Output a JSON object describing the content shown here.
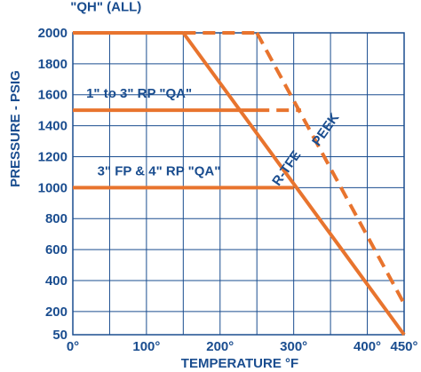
{
  "chart_data": {
    "type": "line",
    "xlabel": "TEMPERATURE °F",
    "ylabel": "PRESSURE - PSIG",
    "xlim": [
      0,
      450
    ],
    "ylim": [
      50,
      2000
    ],
    "grid": true,
    "x_ticks": [
      {
        "value": 0,
        "label": "0°"
      },
      {
        "value": 100,
        "label": "100°"
      },
      {
        "value": 200,
        "label": "200°"
      },
      {
        "value": 300,
        "label": "300°"
      },
      {
        "value": 400,
        "label": "400°"
      },
      {
        "value": 450,
        "label": "450°"
      }
    ],
    "y_ticks": [
      {
        "value": 50,
        "label": "50"
      },
      {
        "value": 200,
        "label": "200"
      },
      {
        "value": 400,
        "label": "400"
      },
      {
        "value": 600,
        "label": "600"
      },
      {
        "value": 800,
        "label": "800"
      },
      {
        "value": 1000,
        "label": "1000"
      },
      {
        "value": 1200,
        "label": "1200"
      },
      {
        "value": 1400,
        "label": "1400"
      },
      {
        "value": 1600,
        "label": "1600"
      },
      {
        "value": 1800,
        "label": "1800"
      },
      {
        "value": 2000,
        "label": "2000"
      }
    ],
    "series": [
      {
        "name": "R-TFE",
        "style": "solid",
        "color": "#e8742e",
        "points": [
          [
            150,
            2000
          ],
          [
            450,
            50
          ]
        ]
      },
      {
        "name": "PEEK",
        "style": "dashed",
        "color": "#e8742e",
        "points": [
          [
            250,
            2000
          ],
          [
            450,
            250
          ]
        ]
      },
      {
        "name": "\"QH\" (ALL)",
        "style": "solid",
        "color": "#e8742e",
        "points": [
          [
            0,
            2000
          ],
          [
            150,
            2000
          ]
        ]
      },
      {
        "name": "",
        "style": "dashed",
        "color": "#e8742e",
        "points": [
          [
            150,
            2000
          ],
          [
            250,
            2000
          ]
        ]
      },
      {
        "name": "1\" to 3\" RP \"QA\"",
        "style": "solid",
        "color": "#e8742e",
        "points": [
          [
            0,
            1500
          ],
          [
            250,
            1500
          ]
        ]
      },
      {
        "name": "",
        "style": "dashed",
        "color": "#e8742e",
        "points": [
          [
            250,
            1500
          ],
          [
            310,
            1500
          ]
        ]
      },
      {
        "name": "3\" FP & 4\" RP \"QA\"",
        "style": "solid",
        "color": "#e8742e",
        "points": [
          [
            0,
            1000
          ],
          [
            300,
            1000
          ]
        ]
      }
    ],
    "annotations": [
      {
        "text": "\"QH\" (ALL)",
        "x": 45,
        "y": 2140
      },
      {
        "text": "1\" to 3\" RP \"QA\"",
        "x": 90,
        "y": 1580
      },
      {
        "text": "3\" FP & 4\" RP \"QA\"",
        "x": 117,
        "y": 1080
      },
      {
        "text": "R-TFE",
        "x": 295,
        "y": 1110,
        "rotate": -55
      },
      {
        "text": "PEEK",
        "x": 348,
        "y": 1360,
        "rotate": -55
      }
    ],
    "colors": {
      "line": "#e8742e",
      "grid": "#1a4d8f",
      "text": "#1a4d8f"
    }
  }
}
